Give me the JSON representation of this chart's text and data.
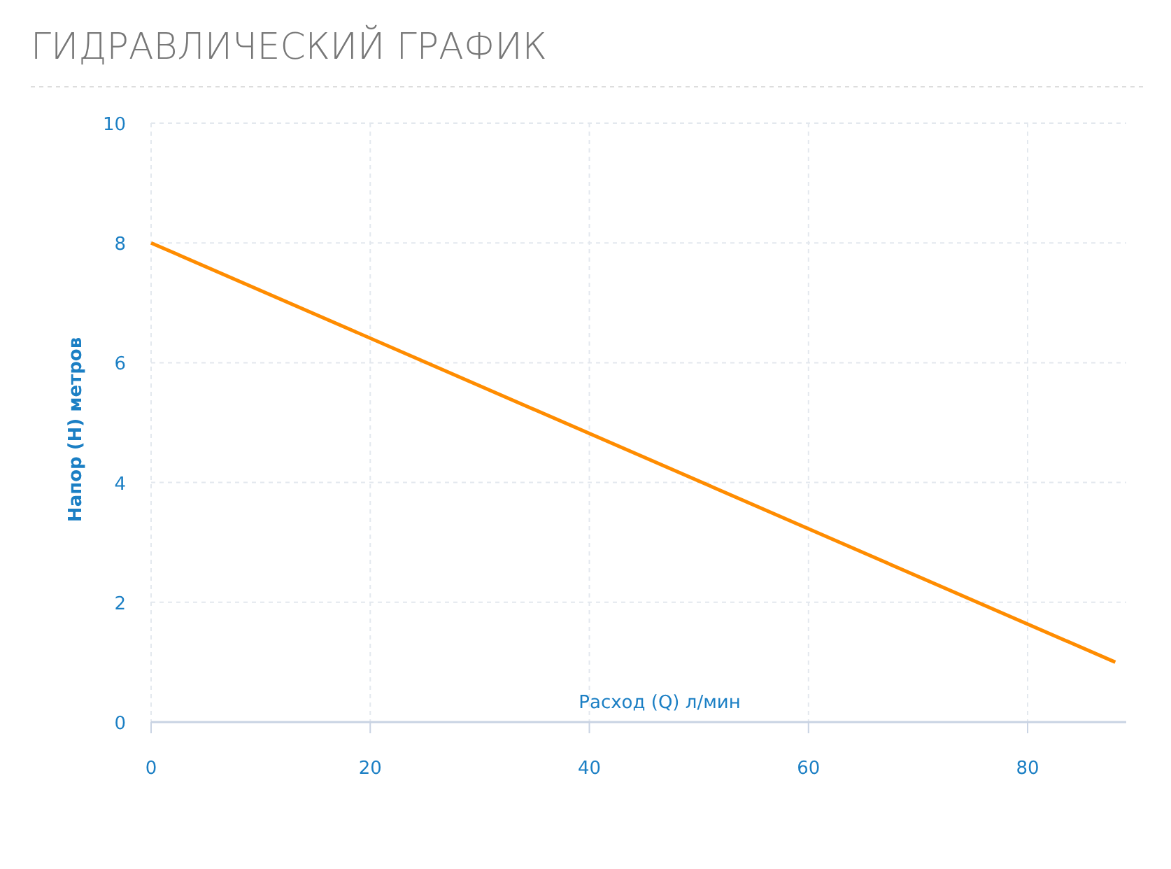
{
  "chart_data": {
    "type": "line",
    "title": "ГИДРАВЛИЧЕСКИЙ ГРАФИК",
    "xlabel": "Расход (Q) л/мин",
    "ylabel": "Напор (H) метров",
    "x": [
      0,
      88
    ],
    "series": [
      {
        "color": "#ff8c00",
        "values": [
          8,
          1
        ]
      }
    ],
    "xlim": [
      0,
      89
    ],
    "ylim": [
      0,
      10
    ],
    "xticks": [
      0,
      20,
      40,
      60,
      80
    ],
    "yticks": [
      0,
      2,
      4,
      6,
      8,
      10
    ],
    "grid": true,
    "marker": "none",
    "line_style": "solid"
  }
}
